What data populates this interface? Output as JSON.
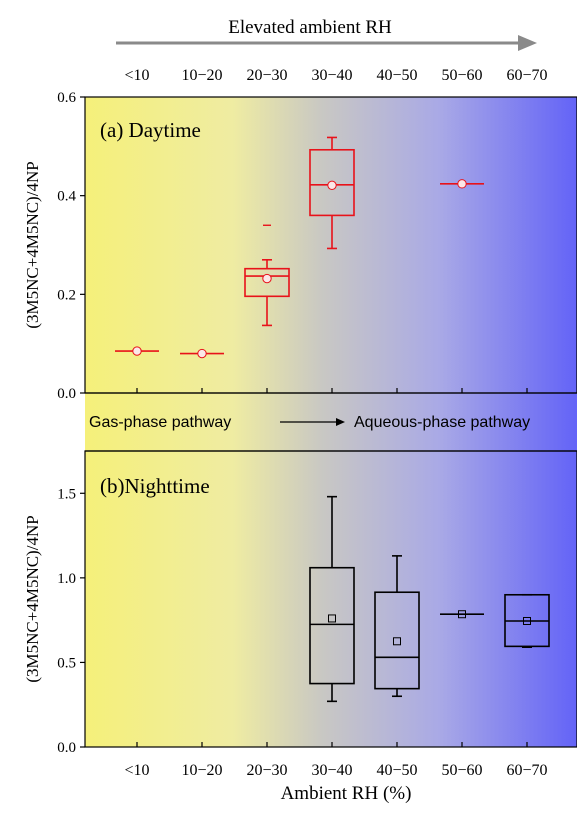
{
  "top_banner": {
    "label": "Elevated ambient RH"
  },
  "middle_band": {
    "left_label": "Gas-phase pathway",
    "right_label": "Aqueous-phase pathway"
  },
  "xaxis": {
    "categories": [
      "<10",
      "10−20",
      "20−30",
      "30−40",
      "40−50",
      "50−60",
      "60−70"
    ],
    "label": "Ambient RH (%)"
  },
  "colors": {
    "gradient_start": "#f5f07a",
    "gradient_mid": "#c8c8c8",
    "gradient_end": "#6a6af5",
    "day_box": "#e8121a",
    "night_box": "#000000",
    "arrow": "#8a8a8a"
  },
  "chart_data": [
    {
      "type": "box",
      "panel_label": "(a) Daytime",
      "ylabel": "(3M5NC+4M5NC)/4NP",
      "ylim": [
        0.0,
        0.6
      ],
      "yticks": [
        "0.0",
        "0.2",
        "0.4",
        "0.6"
      ],
      "categories": [
        "<10",
        "10−20",
        "20−30",
        "30−40",
        "40−50",
        "50−60",
        "60−70"
      ],
      "boxes": [
        {
          "category": "<10",
          "min": 0.085,
          "q1": 0.085,
          "median": 0.085,
          "q3": 0.085,
          "max": 0.085,
          "mean": 0.085
        },
        {
          "category": "10−20",
          "min": 0.08,
          "q1": 0.08,
          "median": 0.08,
          "q3": 0.08,
          "max": 0.08,
          "mean": 0.08
        },
        {
          "category": "20−30",
          "min": 0.137,
          "q1": 0.196,
          "median": 0.237,
          "q3": 0.252,
          "max": 0.27,
          "mean": 0.232,
          "outliers": [
            0.34
          ]
        },
        {
          "category": "30−40",
          "min": 0.293,
          "q1": 0.36,
          "median": 0.422,
          "q3": 0.493,
          "max": 0.518,
          "mean": 0.421
        },
        {
          "category": "50−60",
          "min": 0.424,
          "q1": 0.424,
          "median": 0.424,
          "q3": 0.424,
          "max": 0.424,
          "mean": 0.424
        }
      ]
    },
    {
      "type": "box",
      "panel_label": "(b)Nighttime",
      "ylabel": "(3M5NC+4M5NC)/4NP",
      "ylim": [
        0.0,
        1.75
      ],
      "yticks": [
        "0.0",
        "0.5",
        "1.0",
        "1.5"
      ],
      "categories": [
        "<10",
        "10−20",
        "20−30",
        "30−40",
        "40−50",
        "50−60",
        "60−70"
      ],
      "boxes": [
        {
          "category": "30−40",
          "min": 0.27,
          "q1": 0.375,
          "median": 0.725,
          "q3": 1.06,
          "max": 1.48,
          "mean": 0.76
        },
        {
          "category": "40−50",
          "min": 0.3,
          "q1": 0.345,
          "median": 0.53,
          "q3": 0.915,
          "max": 1.13,
          "mean": 0.625
        },
        {
          "category": "50−60",
          "min": 0.785,
          "q1": 0.785,
          "median": 0.785,
          "q3": 0.785,
          "max": 0.785,
          "mean": 0.785
        },
        {
          "category": "60−70",
          "min": 0.59,
          "q1": 0.595,
          "median": 0.745,
          "q3": 0.9,
          "max": 0.9,
          "mean": 0.745
        }
      ]
    }
  ]
}
